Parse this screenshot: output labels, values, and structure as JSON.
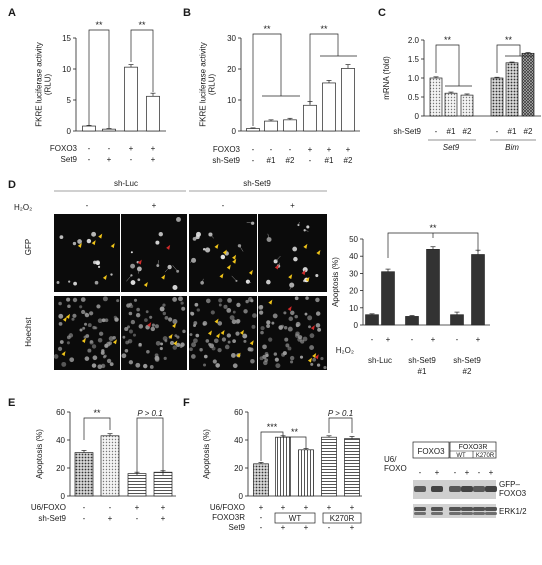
{
  "panels": {
    "A": {
      "letter": "A",
      "ylabel": "FKRE luciferase activity\n(RLU)",
      "yticks": [
        "0",
        "5",
        "10",
        "15"
      ],
      "row_labels": [
        "FOXO3",
        "Set9"
      ],
      "rows": [
        [
          "-",
          "-",
          "+",
          "+"
        ],
        [
          "-",
          "+",
          "-",
          "+"
        ]
      ],
      "sig": [
        "**",
        "**"
      ]
    },
    "B": {
      "letter": "B",
      "ylabel": "FKRE luciferase activity\n(RLU)",
      "yticks": [
        "0",
        "10",
        "20",
        "30"
      ],
      "row_labels": [
        "FOXO3",
        "sh-Set9"
      ],
      "rows": [
        [
          "-",
          "-",
          "-",
          "+",
          "+",
          "+"
        ],
        [
          "-",
          "#1",
          "#2",
          "-",
          "#1",
          "#2"
        ]
      ],
      "sig": [
        "**",
        "**"
      ]
    },
    "C": {
      "letter": "C",
      "ylabel": "mRNA (fold)",
      "yticks": [
        "0",
        "0.5",
        "1.0",
        "1.5",
        "2.0"
      ],
      "row_labels": [
        "sh-Set9"
      ],
      "rows": [
        [
          "-",
          "#1",
          "#2",
          "-",
          "#1",
          "#2"
        ]
      ],
      "groups": [
        "Set9",
        "Bim"
      ],
      "sig": [
        "**",
        "**"
      ]
    },
    "D": {
      "letter": "D",
      "col_headers": [
        "sh-Luc",
        "sh-Set9"
      ],
      "h2o2_label": "H₂O₂",
      "h2o2_values": [
        "-",
        "+",
        "-",
        "+"
      ],
      "row_labels": [
        "GFP",
        "Hoechst"
      ],
      "chart": {
        "ylabel": "Apoptosis (%)",
        "yticks": [
          "0",
          "10",
          "20",
          "30",
          "40",
          "50"
        ],
        "h2o2_label": "H₂O₂",
        "h2o2_values": [
          "-",
          "+",
          "-",
          "+",
          "-",
          "+"
        ],
        "group_labels": [
          [
            "sh-Luc"
          ],
          [
            "sh-Set9",
            "#1"
          ],
          [
            "sh-Set9",
            "#2"
          ]
        ],
        "sig": [
          "**"
        ]
      }
    },
    "E": {
      "letter": "E",
      "ylabel": "Apoptosis (%)",
      "yticks": [
        "0",
        "20",
        "40",
        "60"
      ],
      "row_labels": [
        "U6/FOXO",
        "sh-Set9"
      ],
      "rows": [
        [
          "-",
          "-",
          "+",
          "+"
        ],
        [
          "-",
          "+",
          "-",
          "+"
        ]
      ],
      "sig": [
        "**",
        "P > 0.1"
      ]
    },
    "F": {
      "letter": "F",
      "ylabel": "Apoptosis (%)",
      "yticks": [
        "0",
        "20",
        "40",
        "60"
      ],
      "row_labels": [
        "U6/FOXO",
        "FOXO3R",
        "Set9"
      ],
      "rows": [
        [
          "+",
          "+",
          "+",
          "+",
          "+"
        ],
        [
          "-",
          "-",
          "+",
          "+",
          "+"
        ]
      ],
      "row_set9": [
        "-",
        "+",
        "+",
        "-",
        "+"
      ],
      "foxo3r_boxes": [
        "WT",
        "K270R"
      ],
      "sig": [
        "***",
        "**",
        "P > 0.1"
      ],
      "blot": {
        "header_left": "FOXO3",
        "header_right": "FOXO3R",
        "sub_headers": [
          "WT",
          "K270R"
        ],
        "row_label": "U6/\nFOXO",
        "lane_signs": [
          "-",
          "+",
          "-",
          "+",
          "-",
          "+"
        ],
        "band_labels": [
          "GFP–\nFOXO3",
          "ERK1/2"
        ]
      }
    }
  },
  "chart_data": [
    {
      "panel": "A",
      "type": "bar",
      "categories": [
        "1",
        "2",
        "3",
        "4"
      ],
      "values": [
        0.8,
        0.3,
        10.3,
        5.6
      ],
      "errors": [
        0.1,
        0.1,
        0.4,
        0.5
      ],
      "ylabel": "FKRE luciferase activity (RLU)",
      "ylim": [
        0,
        15
      ]
    },
    {
      "panel": "B",
      "type": "bar",
      "categories": [
        "1",
        "2",
        "3",
        "4",
        "5",
        "6"
      ],
      "values": [
        0.8,
        3.2,
        3.6,
        8.3,
        15.5,
        20.2
      ],
      "errors": [
        0.2,
        0.4,
        0.5,
        1.2,
        0.8,
        1.2
      ],
      "ylabel": "FKRE luciferase activity (RLU)",
      "ylim": [
        0,
        30
      ]
    },
    {
      "panel": "C",
      "type": "bar",
      "categories": [
        "Set9 -",
        "Set9 #1",
        "Set9 #2",
        "Bim -",
        "Bim #1",
        "Bim #2"
      ],
      "values": [
        1.0,
        0.6,
        0.55,
        1.0,
        1.4,
        1.65
      ],
      "errors": [
        0.03,
        0.03,
        0.03,
        0.02,
        0.02,
        0.02
      ],
      "ylabel": "mRNA (fold)",
      "ylim": [
        0,
        2.0
      ]
    },
    {
      "panel": "D",
      "type": "bar",
      "categories": [
        "sh-Luc -",
        "sh-Luc +",
        "sh-Set9 #1 -",
        "sh-Set9 #1 +",
        "sh-Set9 #2 -",
        "sh-Set9 #2 +"
      ],
      "values": [
        6,
        31,
        5,
        44,
        6,
        41
      ],
      "errors": [
        0.5,
        1.5,
        0.5,
        1.5,
        1.5,
        2.5
      ],
      "ylabel": "Apoptosis (%)",
      "ylim": [
        0,
        50
      ]
    },
    {
      "panel": "E",
      "type": "bar",
      "categories": [
        "1",
        "2",
        "3",
        "4"
      ],
      "values": [
        31,
        43,
        16,
        17
      ],
      "errors": [
        1.5,
        1.5,
        1.0,
        1.0
      ],
      "ylabel": "Apoptosis (%)",
      "ylim": [
        0,
        60
      ]
    },
    {
      "panel": "F",
      "type": "bar",
      "categories": [
        "1",
        "2",
        "3",
        "4",
        "5"
      ],
      "values": [
        23,
        42,
        33,
        42,
        41
      ],
      "errors": [
        1.0,
        1.0,
        1.0,
        1.0,
        1.5
      ],
      "ylabel": "Apoptosis (%)",
      "ylim": [
        0,
        60
      ]
    }
  ]
}
